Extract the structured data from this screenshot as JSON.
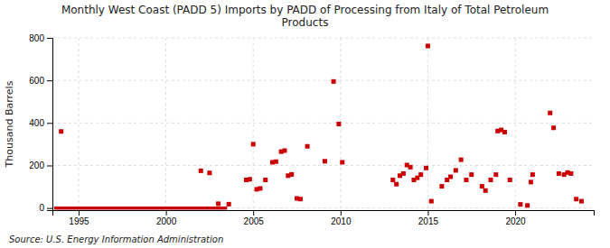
{
  "chart_data": {
    "type": "scatter",
    "title": "Monthly West Coast (PADD 5) Imports by PADD of Processing from Italy of Total Petroleum\nProducts",
    "ylabel": "Thousand Barrels",
    "source": "Source: U.S. Energy Information Administration",
    "xlim": [
      1993.5,
      2024.5
    ],
    "ylim": [
      -10,
      800
    ],
    "xticks": [
      1995,
      2000,
      2005,
      2010,
      2015,
      2020
    ],
    "yticks": [
      0,
      200,
      400,
      600,
      800
    ],
    "grid": true,
    "series": [
      {
        "type": "scatter",
        "marker": "square",
        "color": "#cc0000",
        "x": [
          1994.0,
          2002.0,
          2002.5,
          2003.0,
          2003.6,
          2004.6,
          2004.8,
          2005.0,
          2005.2,
          2005.4,
          2005.7,
          2006.1,
          2006.3,
          2006.6,
          2006.8,
          2007.0,
          2007.2,
          2007.5,
          2007.7,
          2008.1,
          2009.1,
          2009.6,
          2009.9,
          2010.1,
          2013.0,
          2013.2,
          2013.4,
          2013.6,
          2013.8,
          2014.0,
          2014.2,
          2014.4,
          2014.6,
          2014.9,
          2015.0,
          2015.2,
          2015.8,
          2016.1,
          2016.3,
          2016.6,
          2016.9,
          2017.2,
          2017.5,
          2018.1,
          2018.3,
          2018.6,
          2018.9,
          2019.0,
          2019.2,
          2019.4,
          2019.7,
          2020.3,
          2020.7,
          2020.9,
          2021.0,
          2022.0,
          2022.2,
          2022.5,
          2022.8,
          2023.0,
          2023.2,
          2023.5,
          2023.8
        ],
        "values": [
          360,
          175,
          165,
          20,
          18,
          132,
          135,
          300,
          88,
          92,
          132,
          215,
          218,
          265,
          270,
          152,
          158,
          45,
          42,
          290,
          220,
          595,
          395,
          215,
          132,
          112,
          152,
          162,
          202,
          192,
          132,
          142,
          157,
          188,
          762,
          32,
          102,
          132,
          147,
          177,
          227,
          132,
          157,
          102,
          82,
          132,
          157,
          362,
          367,
          357,
          132,
          17,
          12,
          122,
          157,
          447,
          377,
          162,
          157,
          167,
          162,
          42,
          32
        ]
      },
      {
        "type": "line",
        "line_style": "solid",
        "color": "#cc0000",
        "x": [
          1993.6,
          2003.5
        ],
        "values": [
          0,
          0
        ]
      }
    ]
  }
}
